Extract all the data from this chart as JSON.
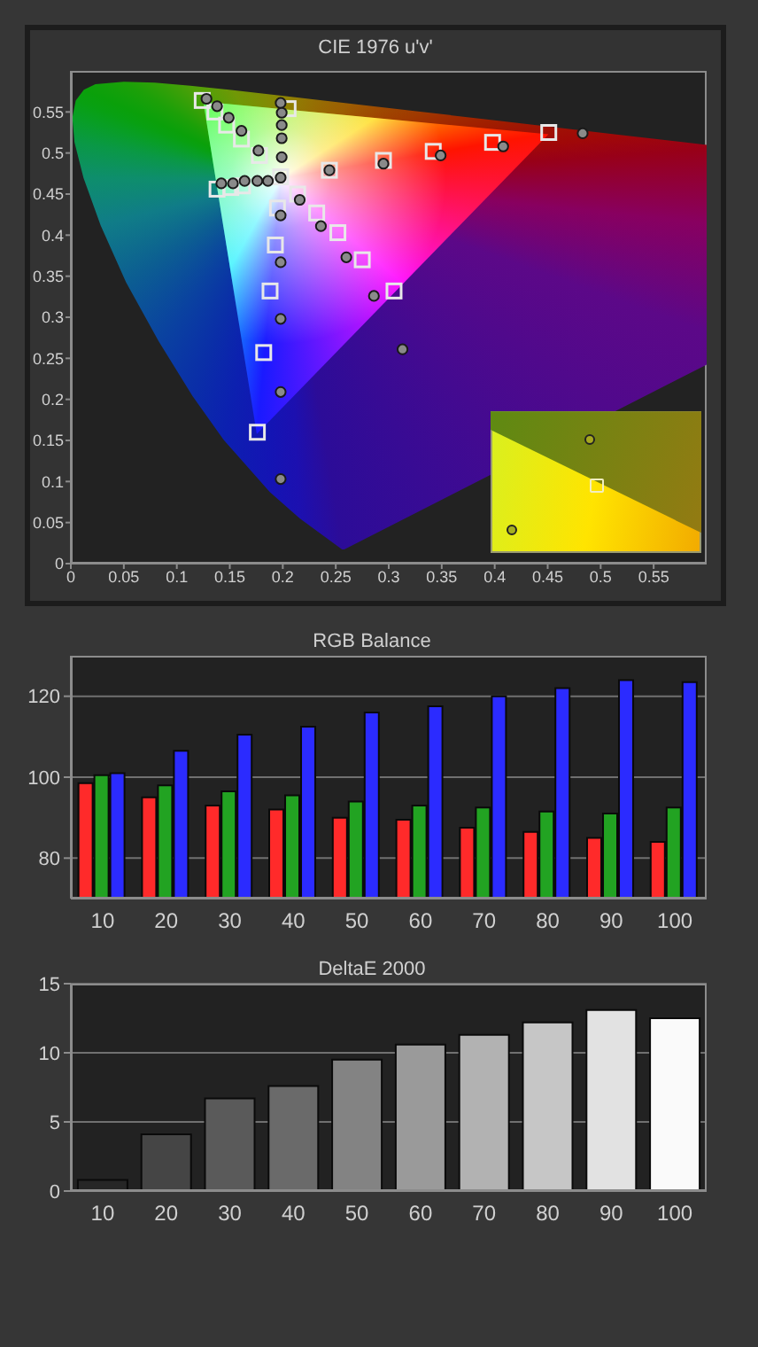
{
  "chart_data": [
    {
      "type": "scatter",
      "title": "CIE 1976 u'v'",
      "xlim": [
        0,
        0.6
      ],
      "ylim": [
        0,
        0.6
      ],
      "xticks": [
        0,
        0.05,
        0.1,
        0.15,
        0.2,
        0.25,
        0.3,
        0.35,
        0.4,
        0.45,
        0.5,
        0.55
      ],
      "yticks": [
        0,
        0.05,
        0.1,
        0.15,
        0.2,
        0.25,
        0.3,
        0.35,
        0.4,
        0.45,
        0.5,
        0.55
      ],
      "series": [
        {
          "color": "#e8e8e8",
          "marker": "square",
          "x": [
            0.124,
            0.136,
            0.147,
            0.161,
            0.178,
            0.138,
            0.151,
            0.162,
            0.205,
            0.451,
            0.398,
            0.342,
            0.295,
            0.244,
            0.305,
            0.275,
            0.252,
            0.232,
            0.214,
            0.176,
            0.182,
            0.188,
            0.193,
            0.195,
            0.198
          ],
          "values": [
            0.564,
            0.55,
            0.534,
            0.517,
            0.497,
            0.456,
            0.458,
            0.46,
            0.554,
            0.525,
            0.513,
            0.502,
            0.491,
            0.479,
            0.332,
            0.37,
            0.403,
            0.427,
            0.45,
            0.16,
            0.257,
            0.332,
            0.388,
            0.433,
            0.471
          ]
        },
        {
          "color": "#8a8a8a",
          "marker": "circle",
          "x": [
            0.128,
            0.138,
            0.149,
            0.161,
            0.177,
            0.142,
            0.153,
            0.164,
            0.176,
            0.186,
            0.198,
            0.199,
            0.199,
            0.199,
            0.199,
            0.483,
            0.408,
            0.349,
            0.295,
            0.244,
            0.313,
            0.286,
            0.26,
            0.236,
            0.216,
            0.198,
            0.198,
            0.198,
            0.198,
            0.198,
            0.198
          ],
          "values": [
            0.566,
            0.557,
            0.543,
            0.527,
            0.503,
            0.463,
            0.463,
            0.466,
            0.466,
            0.466,
            0.561,
            0.549,
            0.534,
            0.518,
            0.495,
            0.524,
            0.508,
            0.497,
            0.487,
            0.479,
            0.261,
            0.326,
            0.373,
            0.411,
            0.443,
            0.103,
            0.209,
            0.298,
            0.367,
            0.424,
            0.47
          ]
        }
      ]
    },
    {
      "type": "bar",
      "title": "RGB Balance",
      "categories": [
        "10",
        "20",
        "30",
        "40",
        "50",
        "60",
        "70",
        "80",
        "90",
        "100"
      ],
      "series": [
        {
          "color": "#ff2a2a",
          "values": [
            98.5,
            95,
            93,
            92,
            90,
            89.5,
            87.5,
            86.5,
            85,
            84
          ]
        },
        {
          "color": "#22a322",
          "values": [
            100.5,
            98,
            96.5,
            95.5,
            94,
            93,
            92.5,
            91.5,
            91,
            92.5
          ]
        },
        {
          "color": "#2b2bff",
          "values": [
            101,
            106.5,
            110.5,
            112.5,
            116,
            117.5,
            120,
            122,
            124,
            123.5
          ]
        }
      ],
      "ylim": [
        70,
        130
      ],
      "yticks": [
        80,
        100,
        120
      ],
      "grid": "y"
    },
    {
      "type": "bar",
      "title": "DeltaE 2000",
      "categories": [
        "10",
        "20",
        "30",
        "40",
        "50",
        "60",
        "70",
        "80",
        "90",
        "100"
      ],
      "values": [
        0.8,
        4.1,
        6.7,
        7.6,
        9.5,
        10.6,
        11.3,
        12.2,
        13.1,
        12.5
      ],
      "colors": [
        "#262626",
        "#454545",
        "#5a5a5a",
        "#6a6a6a",
        "#838383",
        "#9a9a9a",
        "#b2b2b2",
        "#c6c6c6",
        "#e2e2e2",
        "#fafafa"
      ],
      "ylim": [
        0,
        15
      ],
      "yticks": [
        0,
        5,
        10,
        15
      ],
      "grid": "y"
    }
  ]
}
